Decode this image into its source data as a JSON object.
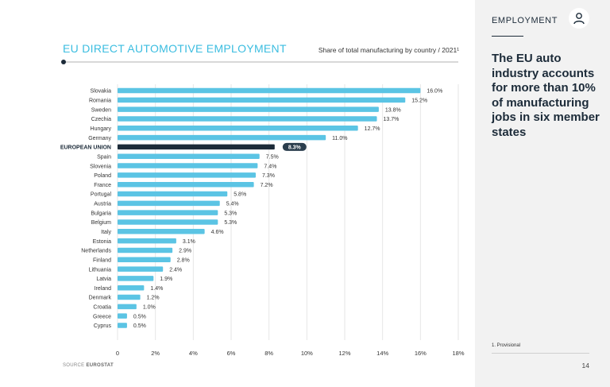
{
  "header": {
    "title": "EU DIRECT AUTOMOTIVE EMPLOYMENT",
    "subtitle": "Share of total manufacturing by country / 2021¹"
  },
  "source": {
    "label": "SOURCE",
    "name": "EUROSTAT"
  },
  "sidebar": {
    "section": "EMPLOYMENT",
    "headline": "The EU auto industry accounts for more than 10% of manufacturing jobs in six member states",
    "footnote": "1. Provisional",
    "page_number": "14",
    "icon": "user-icon"
  },
  "colors": {
    "bar": "#5bc4e4",
    "highlight": "#1c2b39",
    "title": "#3bbde0"
  },
  "chart_data": {
    "type": "bar",
    "orientation": "horizontal",
    "title": "EU DIRECT AUTOMOTIVE EMPLOYMENT",
    "subtitle": "Share of total manufacturing by country / 2021¹",
    "xlabel": "",
    "ylabel": "",
    "xlim": [
      0,
      18
    ],
    "ticks": [
      "0",
      "2%",
      "4%",
      "6%",
      "8%",
      "10%",
      "12%",
      "14%",
      "16%",
      "18%"
    ],
    "tick_values": [
      0,
      2,
      4,
      6,
      8,
      10,
      12,
      14,
      16,
      18
    ],
    "grid": true,
    "highlight": "EUROPEAN UNION",
    "categories": [
      "Slovakia",
      "Romania",
      "Sweden",
      "Czechia",
      "Hungary",
      "Germany",
      "EUROPEAN UNION",
      "Spain",
      "Slovenia",
      "Poland",
      "France",
      "Portugal",
      "Austria",
      "Bulgaria",
      "Belgium",
      "Italy",
      "Estonia",
      "Netherlands",
      "Finland",
      "Lithuania",
      "Latvia",
      "Ireland",
      "Denmark",
      "Croatia",
      "Greece",
      "Cyprus"
    ],
    "values": [
      16.0,
      15.2,
      13.8,
      13.7,
      12.7,
      11.0,
      8.3,
      7.5,
      7.4,
      7.3,
      7.2,
      5.8,
      5.4,
      5.3,
      5.3,
      4.6,
      3.1,
      2.9,
      2.8,
      2.4,
      1.9,
      1.4,
      1.2,
      1.0,
      0.5,
      0.5
    ],
    "labels": [
      "16.0%",
      "15.2%",
      "13.8%",
      "13.7%",
      "12.7%",
      "11.0%",
      "8.3%",
      "7.5%",
      "7.4%",
      "7.3%",
      "7.2%",
      "5.8%",
      "5.4%",
      "5.3%",
      "5.3%",
      "4.6%",
      "3.1%",
      "2.9%",
      "2.8%",
      "2.4%",
      "1.9%",
      "1.4%",
      "1.2%",
      "1.0%",
      "0.5%",
      "0.5%"
    ]
  }
}
